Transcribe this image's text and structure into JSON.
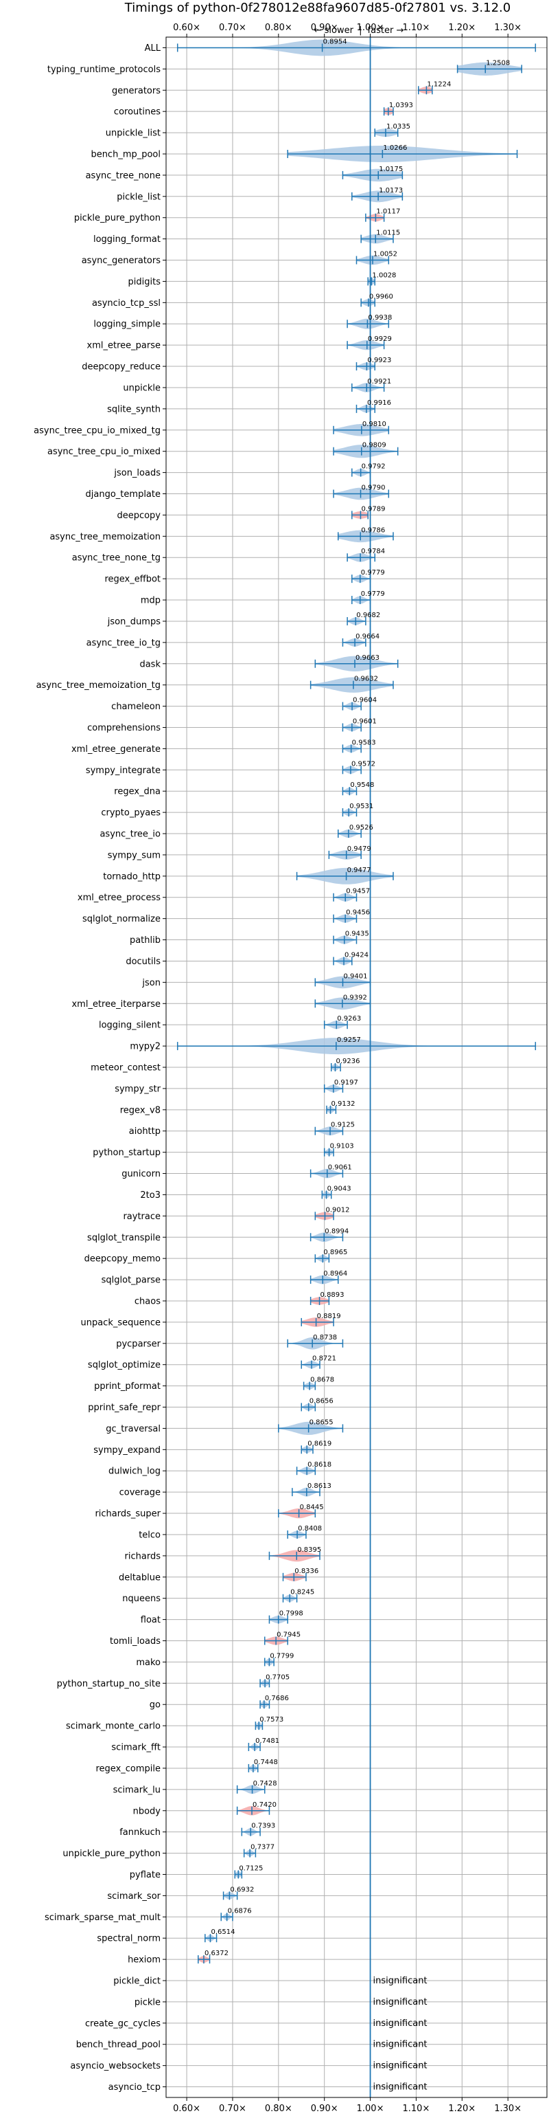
{
  "chart_data": {
    "type": "violin",
    "title": "Timings of python-0f278012e88fa9607d85-0f27801 vs. 3.12.0",
    "direction_labels": {
      "slower": "← slower",
      "faster": "faster →",
      "separator": "|"
    },
    "x_tick_labels": [
      "0.60×",
      "0.70×",
      "0.80×",
      "0.90×",
      "1.00×",
      "1.10×",
      "1.20×",
      "1.30×"
    ],
    "x_ticks": [
      0.6,
      0.7,
      0.8,
      0.9,
      1.0,
      1.1,
      1.2,
      1.3
    ],
    "xlim": [
      0.555,
      1.385
    ],
    "reference_line": 1.0,
    "grid": true,
    "colors": {
      "normal": "#aac8e4",
      "highlight": "#f4a8a8",
      "line": "#1f77b4",
      "grid": "#b0b0b0"
    },
    "insignificant_text": "insignificant",
    "benchmarks": [
      {
        "name": "ALL",
        "value": 0.8954,
        "label": "0.8954",
        "low": 0.58,
        "high": 1.36,
        "spread": 0.07,
        "highlight": false
      },
      {
        "name": "typing_runtime_protocols",
        "value": 1.2508,
        "label": "1.2508",
        "low": 1.19,
        "high": 1.33,
        "spread": 0.05,
        "highlight": false
      },
      {
        "name": "generators",
        "value": 1.1224,
        "label": "1.1224",
        "low": 1.105,
        "high": 1.135,
        "spread": 0.012,
        "highlight": true
      },
      {
        "name": "coroutines",
        "value": 1.0393,
        "label": "1.0393",
        "low": 1.03,
        "high": 1.05,
        "spread": 0.01,
        "highlight": true
      },
      {
        "name": "unpickle_list",
        "value": 1.0335,
        "label": "1.0335",
        "low": 1.01,
        "high": 1.06,
        "spread": 0.02,
        "highlight": false
      },
      {
        "name": "bench_mp_pool",
        "value": 1.0266,
        "label": "1.0266",
        "low": 0.82,
        "high": 1.32,
        "spread": 0.12,
        "highlight": false
      },
      {
        "name": "async_tree_none",
        "value": 1.0175,
        "label": "1.0175",
        "low": 0.94,
        "high": 1.07,
        "spread": 0.04,
        "highlight": false
      },
      {
        "name": "pickle_list",
        "value": 1.0173,
        "label": "1.0173",
        "low": 0.96,
        "high": 1.07,
        "spread": 0.03,
        "highlight": false
      },
      {
        "name": "pickle_pure_python",
        "value": 1.0117,
        "label": "1.0117",
        "low": 0.99,
        "high": 1.03,
        "spread": 0.012,
        "highlight": true
      },
      {
        "name": "logging_format",
        "value": 1.0115,
        "label": "1.0115",
        "low": 0.98,
        "high": 1.05,
        "spread": 0.02,
        "highlight": false
      },
      {
        "name": "async_generators",
        "value": 1.0052,
        "label": "1.0052",
        "low": 0.97,
        "high": 1.04,
        "spread": 0.02,
        "highlight": false
      },
      {
        "name": "pidigits",
        "value": 1.0028,
        "label": "1.0028",
        "low": 0.995,
        "high": 1.01,
        "spread": 0.006,
        "highlight": false
      },
      {
        "name": "asyncio_tcp_ssl",
        "value": 0.996,
        "label": "0.9960",
        "low": 0.98,
        "high": 1.01,
        "spread": 0.01,
        "highlight": false
      },
      {
        "name": "logging_simple",
        "value": 0.9938,
        "label": "0.9938",
        "low": 0.95,
        "high": 1.04,
        "spread": 0.02,
        "highlight": false
      },
      {
        "name": "xml_etree_parse",
        "value": 0.9929,
        "label": "0.9929",
        "low": 0.95,
        "high": 1.03,
        "spread": 0.02,
        "highlight": false
      },
      {
        "name": "deepcopy_reduce",
        "value": 0.9923,
        "label": "0.9923",
        "low": 0.97,
        "high": 1.01,
        "spread": 0.012,
        "highlight": false
      },
      {
        "name": "unpickle",
        "value": 0.9921,
        "label": "0.9921",
        "low": 0.96,
        "high": 1.03,
        "spread": 0.015,
        "highlight": false
      },
      {
        "name": "sqlite_synth",
        "value": 0.9916,
        "label": "0.9916",
        "low": 0.97,
        "high": 1.01,
        "spread": 0.01,
        "highlight": false
      },
      {
        "name": "async_tree_cpu_io_mixed_tg",
        "value": 0.981,
        "label": "0.9810",
        "low": 0.92,
        "high": 1.04,
        "spread": 0.035,
        "highlight": false
      },
      {
        "name": "async_tree_cpu_io_mixed",
        "value": 0.9809,
        "label": "0.9809",
        "low": 0.92,
        "high": 1.06,
        "spread": 0.035,
        "highlight": false
      },
      {
        "name": "json_loads",
        "value": 0.9792,
        "label": "0.9792",
        "low": 0.96,
        "high": 1.0,
        "spread": 0.01,
        "highlight": false
      },
      {
        "name": "django_template",
        "value": 0.979,
        "label": "0.9790",
        "low": 0.92,
        "high": 1.04,
        "spread": 0.03,
        "highlight": false
      },
      {
        "name": "deepcopy",
        "value": 0.9789,
        "label": "0.9789",
        "low": 0.96,
        "high": 0.995,
        "spread": 0.015,
        "highlight": true
      },
      {
        "name": "async_tree_memoization",
        "value": 0.9786,
        "label": "0.9786",
        "low": 0.93,
        "high": 1.05,
        "spread": 0.035,
        "highlight": false
      },
      {
        "name": "async_tree_none_tg",
        "value": 0.9784,
        "label": "0.9784",
        "low": 0.95,
        "high": 1.01,
        "spread": 0.015,
        "highlight": false
      },
      {
        "name": "regex_effbot",
        "value": 0.9779,
        "label": "0.9779",
        "low": 0.96,
        "high": 1.0,
        "spread": 0.01,
        "highlight": false
      },
      {
        "name": "mdp",
        "value": 0.9779,
        "label": "0.9779",
        "low": 0.96,
        "high": 1.0,
        "spread": 0.01,
        "highlight": false
      },
      {
        "name": "json_dumps",
        "value": 0.9682,
        "label": "0.9682",
        "low": 0.95,
        "high": 0.99,
        "spread": 0.01,
        "highlight": false
      },
      {
        "name": "async_tree_io_tg",
        "value": 0.9664,
        "label": "0.9664",
        "low": 0.94,
        "high": 0.99,
        "spread": 0.012,
        "highlight": false
      },
      {
        "name": "dask",
        "value": 0.9663,
        "label": "0.9663",
        "low": 0.88,
        "high": 1.06,
        "spread": 0.04,
        "highlight": false
      },
      {
        "name": "async_tree_memoization_tg",
        "value": 0.9632,
        "label": "0.9632",
        "low": 0.87,
        "high": 1.05,
        "spread": 0.045,
        "highlight": false
      },
      {
        "name": "chameleon",
        "value": 0.9604,
        "label": "0.9604",
        "low": 0.94,
        "high": 0.98,
        "spread": 0.01,
        "highlight": false
      },
      {
        "name": "comprehensions",
        "value": 0.9601,
        "label": "0.9601",
        "low": 0.94,
        "high": 0.98,
        "spread": 0.01,
        "highlight": false
      },
      {
        "name": "xml_etree_generate",
        "value": 0.9583,
        "label": "0.9583",
        "low": 0.94,
        "high": 0.98,
        "spread": 0.01,
        "highlight": false
      },
      {
        "name": "sympy_integrate",
        "value": 0.9572,
        "label": "0.9572",
        "low": 0.94,
        "high": 0.98,
        "spread": 0.01,
        "highlight": false
      },
      {
        "name": "regex_dna",
        "value": 0.9548,
        "label": "0.9548",
        "low": 0.94,
        "high": 0.97,
        "spread": 0.008,
        "highlight": false
      },
      {
        "name": "crypto_pyaes",
        "value": 0.9531,
        "label": "0.9531",
        "low": 0.94,
        "high": 0.97,
        "spread": 0.008,
        "highlight": false
      },
      {
        "name": "async_tree_io",
        "value": 0.9526,
        "label": "0.9526",
        "low": 0.93,
        "high": 0.98,
        "spread": 0.012,
        "highlight": false
      },
      {
        "name": "sympy_sum",
        "value": 0.9479,
        "label": "0.9479",
        "low": 0.91,
        "high": 0.98,
        "spread": 0.02,
        "highlight": false
      },
      {
        "name": "tornado_http",
        "value": 0.9477,
        "label": "0.9477",
        "low": 0.84,
        "high": 1.05,
        "spread": 0.05,
        "highlight": false
      },
      {
        "name": "xml_etree_process",
        "value": 0.9457,
        "label": "0.9457",
        "low": 0.92,
        "high": 0.97,
        "spread": 0.012,
        "highlight": false
      },
      {
        "name": "sqlglot_normalize",
        "value": 0.9456,
        "label": "0.9456",
        "low": 0.92,
        "high": 0.97,
        "spread": 0.012,
        "highlight": false
      },
      {
        "name": "pathlib",
        "value": 0.9435,
        "label": "0.9435",
        "low": 0.92,
        "high": 0.97,
        "spread": 0.012,
        "highlight": false
      },
      {
        "name": "docutils",
        "value": 0.9424,
        "label": "0.9424",
        "low": 0.92,
        "high": 0.96,
        "spread": 0.01,
        "highlight": false
      },
      {
        "name": "json",
        "value": 0.9401,
        "label": "0.9401",
        "low": 0.88,
        "high": 1.0,
        "spread": 0.03,
        "highlight": false
      },
      {
        "name": "xml_etree_iterparse",
        "value": 0.9392,
        "label": "0.9392",
        "low": 0.88,
        "high": 1.0,
        "spread": 0.03,
        "highlight": false
      },
      {
        "name": "logging_silent",
        "value": 0.9263,
        "label": "0.9263",
        "low": 0.9,
        "high": 0.95,
        "spread": 0.012,
        "highlight": false
      },
      {
        "name": "mypy2",
        "value": 0.9257,
        "label": "0.9257",
        "low": 0.58,
        "high": 1.36,
        "spread": 0.08,
        "highlight": false
      },
      {
        "name": "meteor_contest",
        "value": 0.9236,
        "label": "0.9236",
        "low": 0.915,
        "high": 0.935,
        "spread": 0.006,
        "highlight": false
      },
      {
        "name": "sympy_str",
        "value": 0.9197,
        "label": "0.9197",
        "low": 0.9,
        "high": 0.94,
        "spread": 0.01,
        "highlight": false
      },
      {
        "name": "regex_v8",
        "value": 0.9132,
        "label": "0.9132",
        "low": 0.905,
        "high": 0.925,
        "spread": 0.006,
        "highlight": false
      },
      {
        "name": "aiohttp",
        "value": 0.9125,
        "label": "0.9125",
        "low": 0.88,
        "high": 0.94,
        "spread": 0.015,
        "highlight": false
      },
      {
        "name": "python_startup",
        "value": 0.9103,
        "label": "0.9103",
        "low": 0.9,
        "high": 0.92,
        "spread": 0.006,
        "highlight": false
      },
      {
        "name": "gunicorn",
        "value": 0.9061,
        "label": "0.9061",
        "low": 0.87,
        "high": 0.94,
        "spread": 0.015,
        "highlight": false
      },
      {
        "name": "2to3",
        "value": 0.9043,
        "label": "0.9043",
        "low": 0.895,
        "high": 0.915,
        "spread": 0.006,
        "highlight": false
      },
      {
        "name": "raytrace",
        "value": 0.9012,
        "label": "0.9012",
        "low": 0.88,
        "high": 0.92,
        "spread": 0.015,
        "highlight": true
      },
      {
        "name": "sqlglot_transpile",
        "value": 0.8994,
        "label": "0.8994",
        "low": 0.87,
        "high": 0.94,
        "spread": 0.015,
        "highlight": false
      },
      {
        "name": "deepcopy_memo",
        "value": 0.8965,
        "label": "0.8965",
        "low": 0.88,
        "high": 0.91,
        "spread": 0.008,
        "highlight": false
      },
      {
        "name": "sqlglot_parse",
        "value": 0.8964,
        "label": "0.8964",
        "low": 0.87,
        "high": 0.93,
        "spread": 0.015,
        "highlight": false
      },
      {
        "name": "chaos",
        "value": 0.8893,
        "label": "0.8893",
        "low": 0.87,
        "high": 0.91,
        "spread": 0.015,
        "highlight": true
      },
      {
        "name": "unpack_sequence",
        "value": 0.8819,
        "label": "0.8819",
        "low": 0.85,
        "high": 0.92,
        "spread": 0.02,
        "highlight": true
      },
      {
        "name": "pycparser",
        "value": 0.8738,
        "label": "0.8738",
        "low": 0.82,
        "high": 0.94,
        "spread": 0.02,
        "highlight": false
      },
      {
        "name": "sqlglot_optimize",
        "value": 0.8721,
        "label": "0.8721",
        "low": 0.85,
        "high": 0.89,
        "spread": 0.01,
        "highlight": false
      },
      {
        "name": "pprint_pformat",
        "value": 0.8678,
        "label": "0.8678",
        "low": 0.855,
        "high": 0.88,
        "spread": 0.008,
        "highlight": false
      },
      {
        "name": "pprint_safe_repr",
        "value": 0.8656,
        "label": "0.8656",
        "low": 0.85,
        "high": 0.88,
        "spread": 0.008,
        "highlight": false
      },
      {
        "name": "gc_traversal",
        "value": 0.8655,
        "label": "0.8655",
        "low": 0.8,
        "high": 0.94,
        "spread": 0.03,
        "highlight": false
      },
      {
        "name": "sympy_expand",
        "value": 0.8619,
        "label": "0.8619",
        "low": 0.85,
        "high": 0.875,
        "spread": 0.008,
        "highlight": false
      },
      {
        "name": "dulwich_log",
        "value": 0.8618,
        "label": "0.8618",
        "low": 0.84,
        "high": 0.88,
        "spread": 0.01,
        "highlight": false
      },
      {
        "name": "coverage",
        "value": 0.8613,
        "label": "0.8613",
        "low": 0.83,
        "high": 0.89,
        "spread": 0.012,
        "highlight": false
      },
      {
        "name": "richards_super",
        "value": 0.8445,
        "label": "0.8445",
        "low": 0.8,
        "high": 0.88,
        "spread": 0.02,
        "highlight": true
      },
      {
        "name": "telco",
        "value": 0.8408,
        "label": "0.8408",
        "low": 0.82,
        "high": 0.86,
        "spread": 0.01,
        "highlight": false
      },
      {
        "name": "richards",
        "value": 0.8395,
        "label": "0.8395",
        "low": 0.78,
        "high": 0.89,
        "spread": 0.025,
        "highlight": true
      },
      {
        "name": "deltablue",
        "value": 0.8336,
        "label": "0.8336",
        "low": 0.81,
        "high": 0.86,
        "spread": 0.015,
        "highlight": true
      },
      {
        "name": "nqueens",
        "value": 0.8245,
        "label": "0.8245",
        "low": 0.81,
        "high": 0.84,
        "spread": 0.008,
        "highlight": false
      },
      {
        "name": "float",
        "value": 0.7998,
        "label": "0.7998",
        "low": 0.78,
        "high": 0.82,
        "spread": 0.012,
        "highlight": false
      },
      {
        "name": "tomli_loads",
        "value": 0.7945,
        "label": "0.7945",
        "low": 0.77,
        "high": 0.82,
        "spread": 0.015,
        "highlight": true
      },
      {
        "name": "mako",
        "value": 0.7799,
        "label": "0.7799",
        "low": 0.77,
        "high": 0.79,
        "spread": 0.006,
        "highlight": false
      },
      {
        "name": "python_startup_no_site",
        "value": 0.7705,
        "label": "0.7705",
        "low": 0.76,
        "high": 0.78,
        "spread": 0.006,
        "highlight": false
      },
      {
        "name": "go",
        "value": 0.7686,
        "label": "0.7686",
        "low": 0.76,
        "high": 0.78,
        "spread": 0.006,
        "highlight": false
      },
      {
        "name": "scimark_monte_carlo",
        "value": 0.7573,
        "label": "0.7573",
        "low": 0.75,
        "high": 0.765,
        "spread": 0.005,
        "highlight": false
      },
      {
        "name": "scimark_fft",
        "value": 0.7481,
        "label": "0.7481",
        "low": 0.735,
        "high": 0.76,
        "spread": 0.006,
        "highlight": false
      },
      {
        "name": "regex_compile",
        "value": 0.7448,
        "label": "0.7448",
        "low": 0.735,
        "high": 0.755,
        "spread": 0.006,
        "highlight": false
      },
      {
        "name": "scimark_lu",
        "value": 0.7428,
        "label": "0.7428",
        "low": 0.71,
        "high": 0.77,
        "spread": 0.012,
        "highlight": false
      },
      {
        "name": "nbody",
        "value": 0.742,
        "label": "0.7420",
        "low": 0.71,
        "high": 0.78,
        "spread": 0.015,
        "highlight": true
      },
      {
        "name": "fannkuch",
        "value": 0.7393,
        "label": "0.7393",
        "low": 0.72,
        "high": 0.76,
        "spread": 0.008,
        "highlight": false
      },
      {
        "name": "unpickle_pure_python",
        "value": 0.7377,
        "label": "0.7377",
        "low": 0.725,
        "high": 0.75,
        "spread": 0.006,
        "highlight": false
      },
      {
        "name": "pyflate",
        "value": 0.7125,
        "label": "0.7125",
        "low": 0.705,
        "high": 0.72,
        "spread": 0.005,
        "highlight": false
      },
      {
        "name": "scimark_sor",
        "value": 0.6932,
        "label": "0.6932",
        "low": 0.68,
        "high": 0.71,
        "spread": 0.008,
        "highlight": false
      },
      {
        "name": "scimark_sparse_mat_mult",
        "value": 0.6876,
        "label": "0.6876",
        "low": 0.675,
        "high": 0.7,
        "spread": 0.006,
        "highlight": false
      },
      {
        "name": "spectral_norm",
        "value": 0.6514,
        "label": "0.6514",
        "low": 0.64,
        "high": 0.665,
        "spread": 0.006,
        "highlight": false
      },
      {
        "name": "hexiom",
        "value": 0.6372,
        "label": "0.6372",
        "low": 0.625,
        "high": 0.65,
        "spread": 0.008,
        "highlight": true
      },
      {
        "name": "pickle_dict",
        "value": null,
        "insignificant": true
      },
      {
        "name": "pickle",
        "value": null,
        "insignificant": true
      },
      {
        "name": "create_gc_cycles",
        "value": null,
        "insignificant": true
      },
      {
        "name": "bench_thread_pool",
        "value": null,
        "insignificant": true
      },
      {
        "name": "asyncio_websockets",
        "value": null,
        "insignificant": true
      },
      {
        "name": "asyncio_tcp",
        "value": null,
        "insignificant": true
      }
    ]
  }
}
